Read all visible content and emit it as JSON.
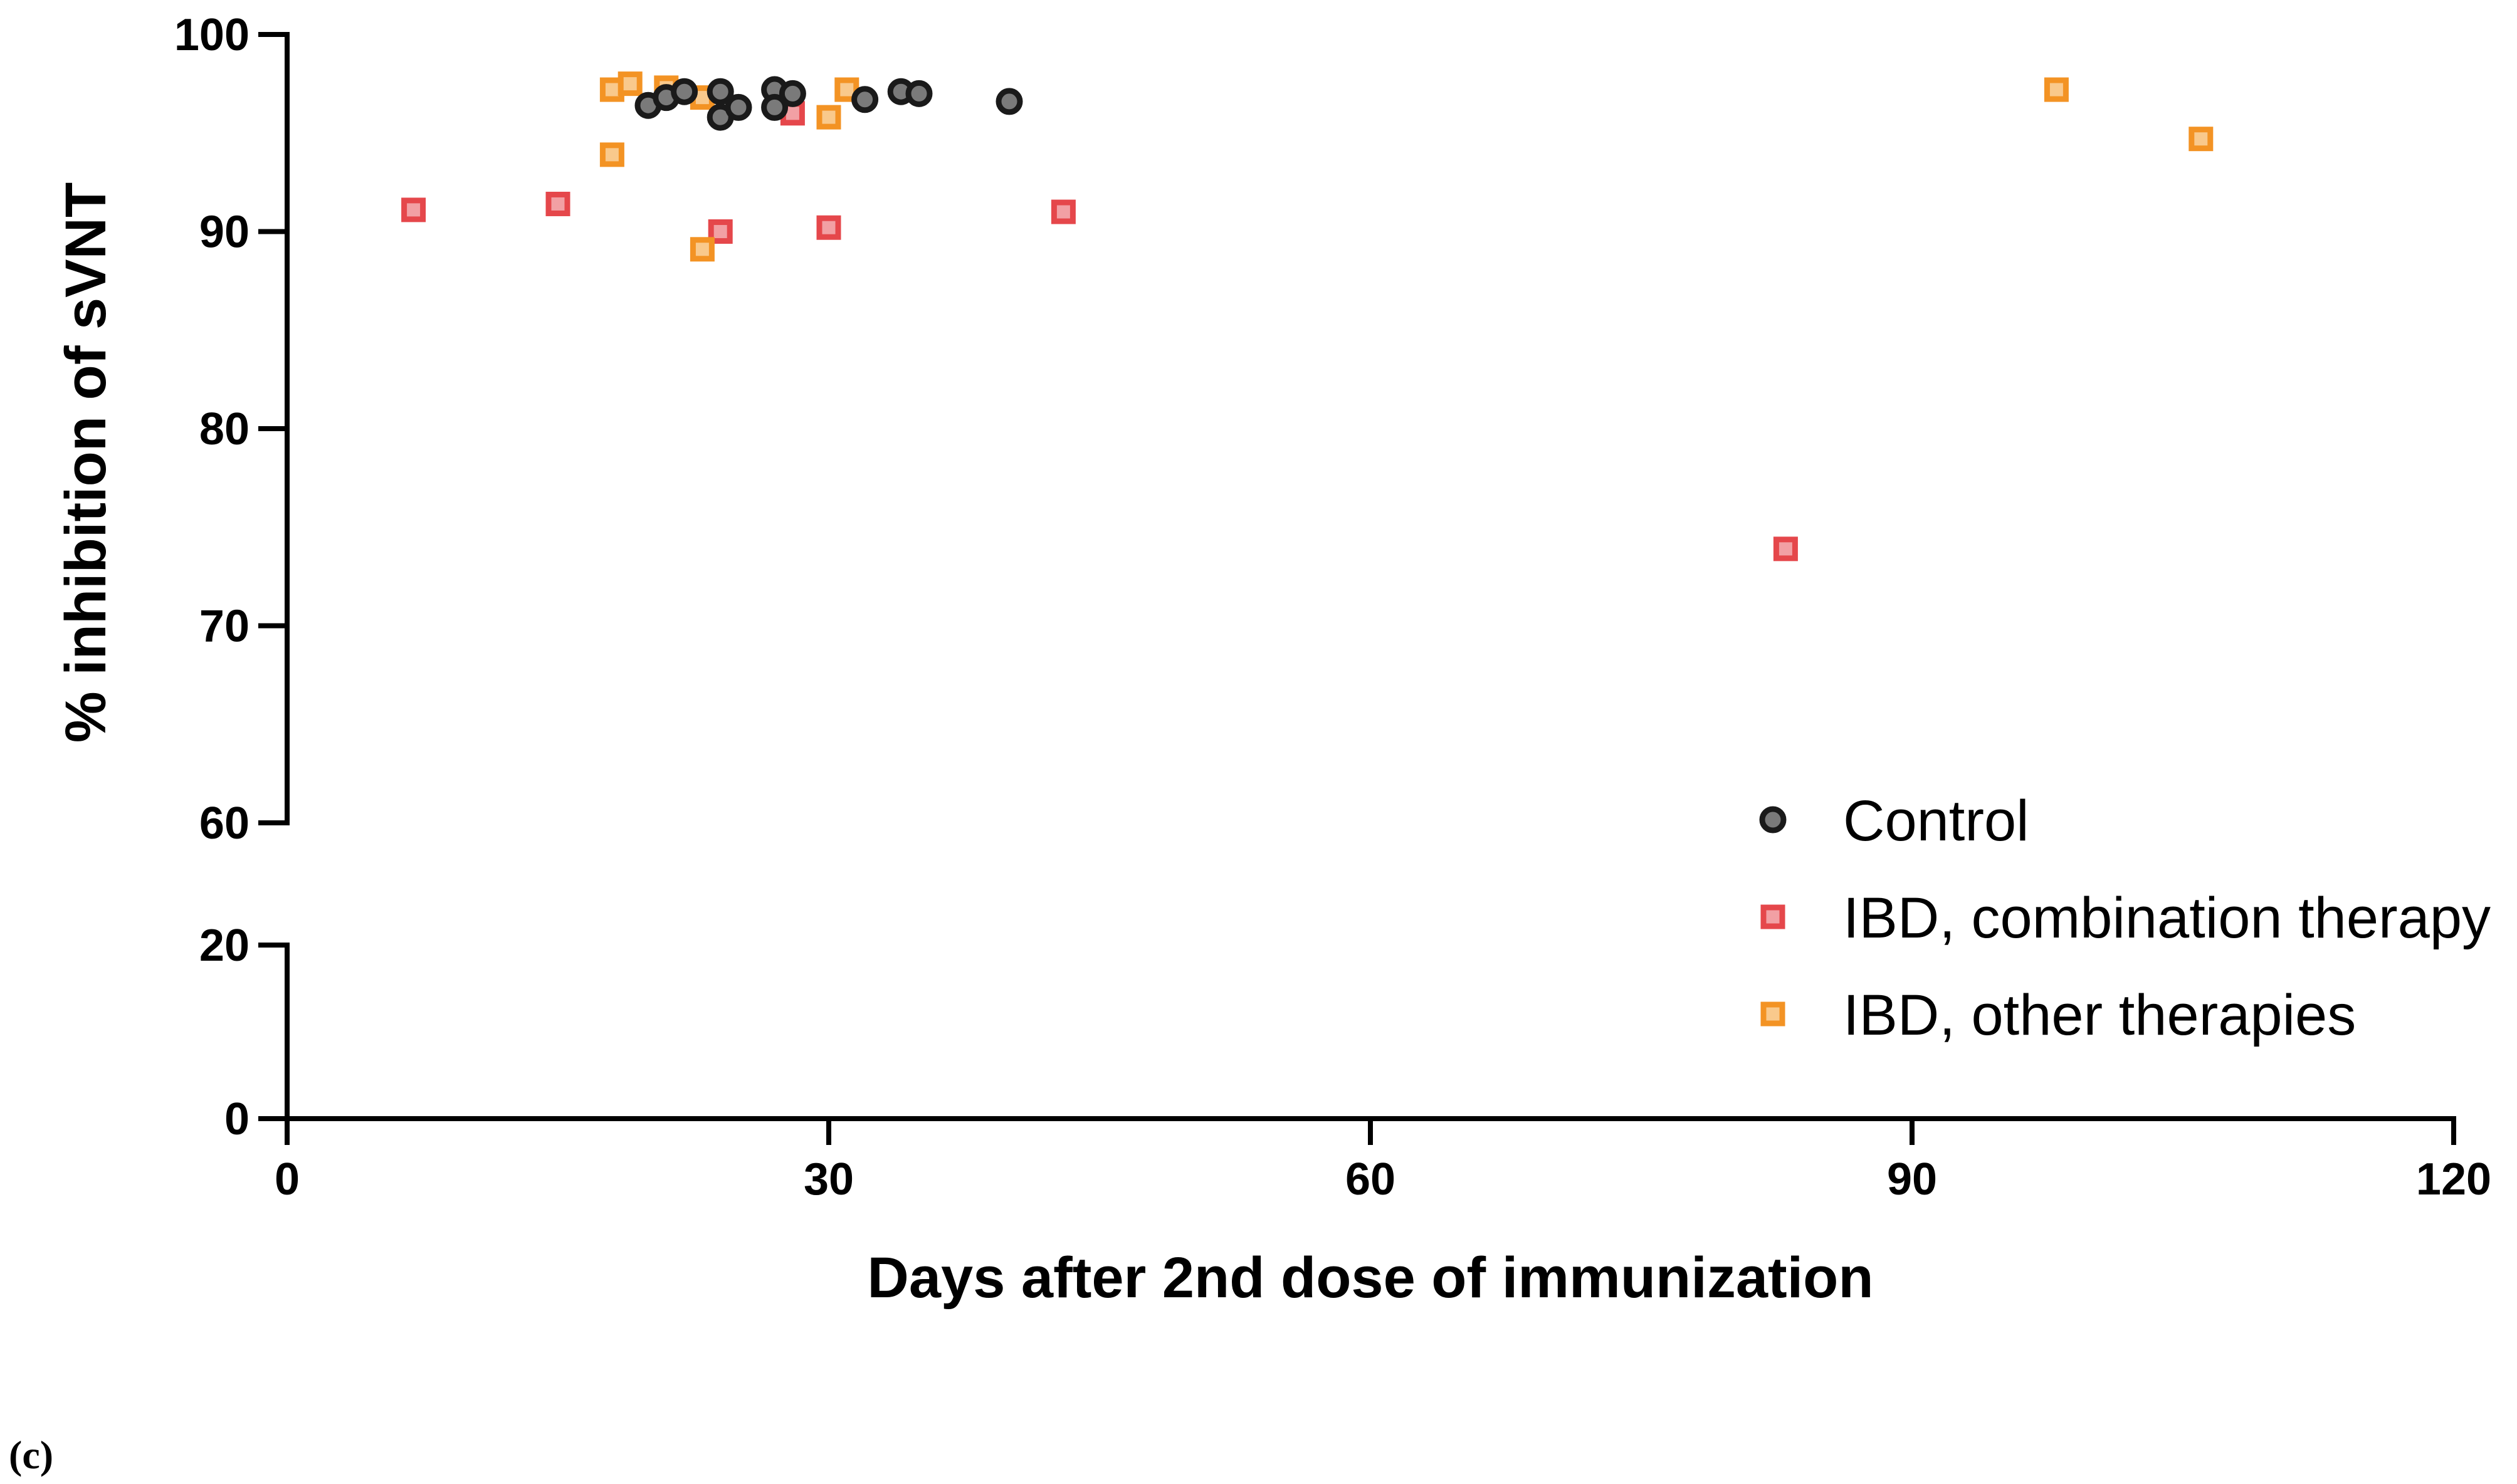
{
  "panel_label": "(c)",
  "chart_data": {
    "type": "scatter",
    "xlabel": "Days after 2nd dose of immunization",
    "ylabel": "% inhibition of sVNT",
    "xlim": [
      0,
      120
    ],
    "x_ticks": [
      0,
      30,
      60,
      90,
      120
    ],
    "x_tick_labels": [
      "0",
      "30",
      "60",
      "90",
      "120"
    ],
    "y_axis_broken": true,
    "y_segments": [
      {
        "range": [
          60,
          100
        ],
        "ticks": [
          60,
          70,
          80,
          90,
          100
        ],
        "tick_labels": [
          "60",
          "70",
          "80",
          "90",
          "100"
        ]
      },
      {
        "range": [
          0,
          20
        ],
        "ticks": [
          0,
          20
        ],
        "tick_labels": [
          "0",
          "20"
        ]
      }
    ],
    "grid": false,
    "legend_position": "bottom-right",
    "series": [
      {
        "name": "Control",
        "marker": "circle",
        "color": "#1a1a1a",
        "fill": "#7a7a7a",
        "points": [
          [
            20,
            96.4
          ],
          [
            21,
            96.8
          ],
          [
            22,
            97.1
          ],
          [
            24,
            97.1
          ],
          [
            24,
            95.8
          ],
          [
            25,
            96.3
          ],
          [
            27,
            97.2
          ],
          [
            27,
            96.3
          ],
          [
            28,
            97.0
          ],
          [
            32,
            96.7
          ],
          [
            34,
            97.1
          ],
          [
            35,
            97.0
          ],
          [
            40,
            96.6
          ]
        ]
      },
      {
        "name": "IBD, combination therapy",
        "marker": "square",
        "color": "#e5474b",
        "fill": "#f2a0a4",
        "points": [
          [
            7,
            91.1
          ],
          [
            15,
            91.4
          ],
          [
            24,
            90.0
          ],
          [
            28,
            96.0
          ],
          [
            30,
            90.2
          ],
          [
            43,
            91.0
          ],
          [
            83,
            73.9
          ]
        ]
      },
      {
        "name": "IBD, other therapies",
        "marker": "square",
        "color": "#f39324",
        "fill": "#f9c98c",
        "points": [
          [
            18,
            97.2
          ],
          [
            19,
            97.5
          ],
          [
            21,
            97.3
          ],
          [
            23,
            96.8
          ],
          [
            18,
            93.9
          ],
          [
            23,
            89.1
          ],
          [
            30,
            95.8
          ],
          [
            31,
            97.2
          ],
          [
            98,
            97.2
          ],
          [
            106,
            94.7
          ]
        ]
      }
    ]
  }
}
